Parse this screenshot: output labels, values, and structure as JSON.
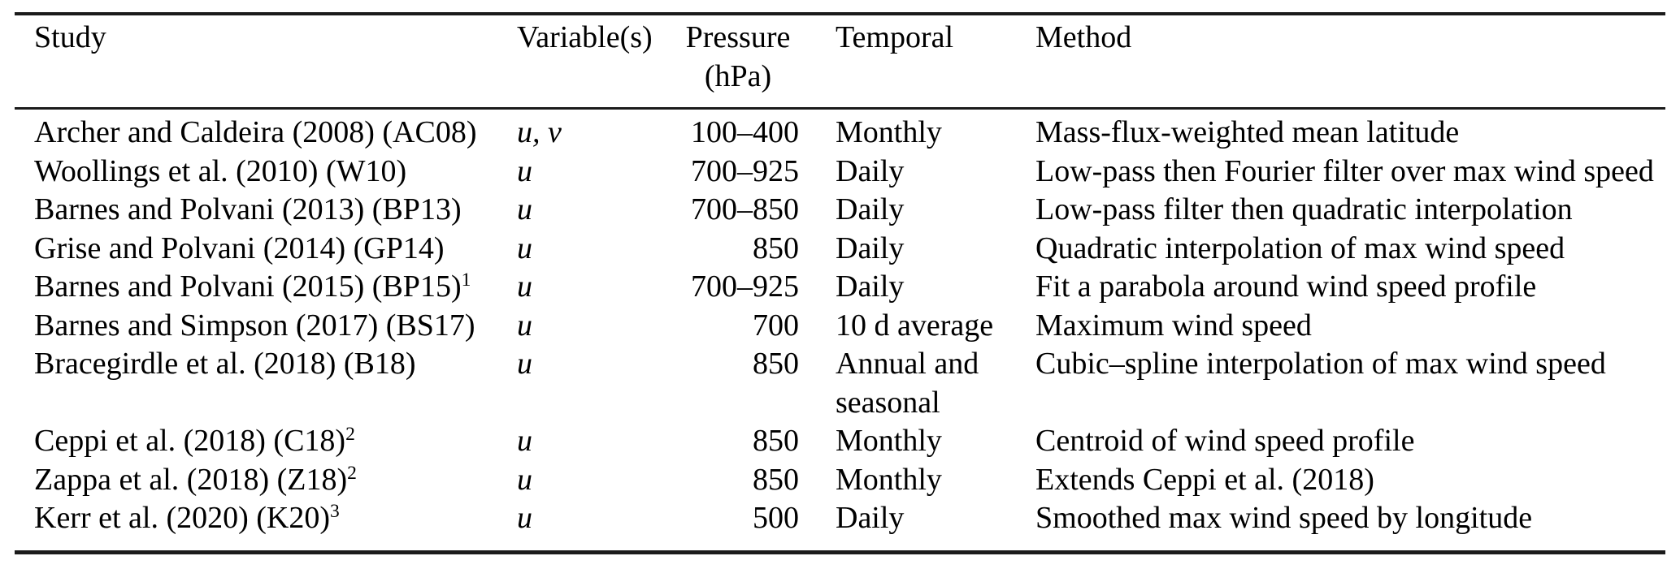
{
  "table": {
    "columns": {
      "study": "Study",
      "variables": "Variable(s)",
      "pressure_line1": "Pressure",
      "pressure_line2": "(hPa)",
      "temporal": "Temporal",
      "method": "Method"
    },
    "rows": [
      {
        "study": "Archer and Caldeira (2008) (AC08)",
        "sup": "",
        "variables": "u, v",
        "pressure": "100–400",
        "temporal": "Monthly",
        "method": "Mass-flux-weighted mean latitude"
      },
      {
        "study": "Woollings et al. (2010) (W10)",
        "sup": "",
        "variables": "u",
        "pressure": "700–925",
        "temporal": "Daily",
        "method": "Low-pass then Fourier filter over max wind speed"
      },
      {
        "study": "Barnes and Polvani (2013) (BP13)",
        "sup": "",
        "variables": "u",
        "pressure": "700–850",
        "temporal": "Daily",
        "method": "Low-pass filter then quadratic interpolation"
      },
      {
        "study": "Grise and Polvani (2014) (GP14)",
        "sup": "",
        "variables": "u",
        "pressure": "850",
        "temporal": "Daily",
        "method": "Quadratic interpolation of max wind speed"
      },
      {
        "study": "Barnes and Polvani (2015) (BP15)",
        "sup": "1",
        "variables": "u",
        "pressure": "700–925",
        "temporal": "Daily",
        "method": "Fit a parabola around wind speed profile"
      },
      {
        "study": "Barnes and Simpson (2017) (BS17)",
        "sup": "",
        "variables": "u",
        "pressure": "700",
        "temporal": "10 d average",
        "method": "Maximum wind speed"
      },
      {
        "study": "Bracegirdle et al. (2018) (B18)",
        "sup": "",
        "variables": "u",
        "pressure": "850",
        "temporal": "Annual and seasonal",
        "method": "Cubic–spline interpolation of max wind speed"
      },
      {
        "study": "Ceppi et al. (2018) (C18)",
        "sup": "2",
        "variables": "u",
        "pressure": "850",
        "temporal": "Monthly",
        "method": "Centroid of wind speed profile"
      },
      {
        "study": "Zappa et al. (2018) (Z18)",
        "sup": "2",
        "variables": "u",
        "pressure": "850",
        "temporal": "Monthly",
        "method": "Extends Ceppi et al. (2018)"
      },
      {
        "study": "Kerr et al. (2020) (K20)",
        "sup": "3",
        "variables": "u",
        "pressure": "500",
        "temporal": "Daily",
        "method": "Smoothed max wind speed by longitude"
      }
    ]
  },
  "colors": {
    "background": "#ffffff",
    "text": "#000000",
    "rule": "#1b1b1b"
  }
}
